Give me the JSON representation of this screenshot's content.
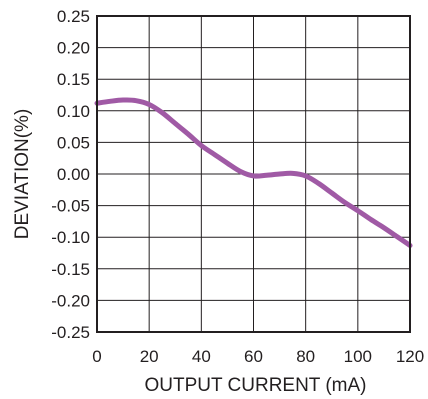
{
  "chart_data": {
    "type": "line",
    "xlabel": "OUTPUT CURRENT (mA)",
    "ylabel": "DEVIATION(%)",
    "xlim": [
      0,
      120
    ],
    "ylim": [
      -0.25,
      0.25
    ],
    "x_ticks": [
      0,
      20,
      40,
      60,
      80,
      100,
      120
    ],
    "y_ticks": [
      0.25,
      0.2,
      0.15,
      0.1,
      0.05,
      0.0,
      -0.05,
      -0.1,
      -0.15,
      -0.2,
      -0.25
    ],
    "x_tick_labels": [
      "0",
      "20",
      "40",
      "60",
      "80",
      "100",
      "120"
    ],
    "y_tick_labels": [
      "0.25",
      "0.20",
      "0.15",
      "0.10",
      "0.05",
      "0.00",
      "-0.05",
      "-0.10",
      "-0.15",
      "-0.20",
      "-0.25"
    ],
    "grid": true,
    "line_color": "#a05aa5",
    "series": [
      {
        "x": [
          0,
          5,
          10,
          15,
          20,
          25,
          30,
          35,
          40,
          45,
          50,
          55,
          60,
          65,
          70,
          75,
          80,
          85,
          90,
          95,
          100,
          105,
          110,
          115,
          120
        ],
        "y": [
          0.112,
          0.115,
          0.117,
          0.116,
          0.11,
          0.097,
          0.08,
          0.063,
          0.045,
          0.031,
          0.017,
          0.004,
          -0.003,
          -0.002,
          0.0,
          0.001,
          -0.003,
          -0.015,
          -0.03,
          -0.045,
          -0.058,
          -0.072,
          -0.085,
          -0.099,
          -0.113
        ]
      }
    ]
  }
}
